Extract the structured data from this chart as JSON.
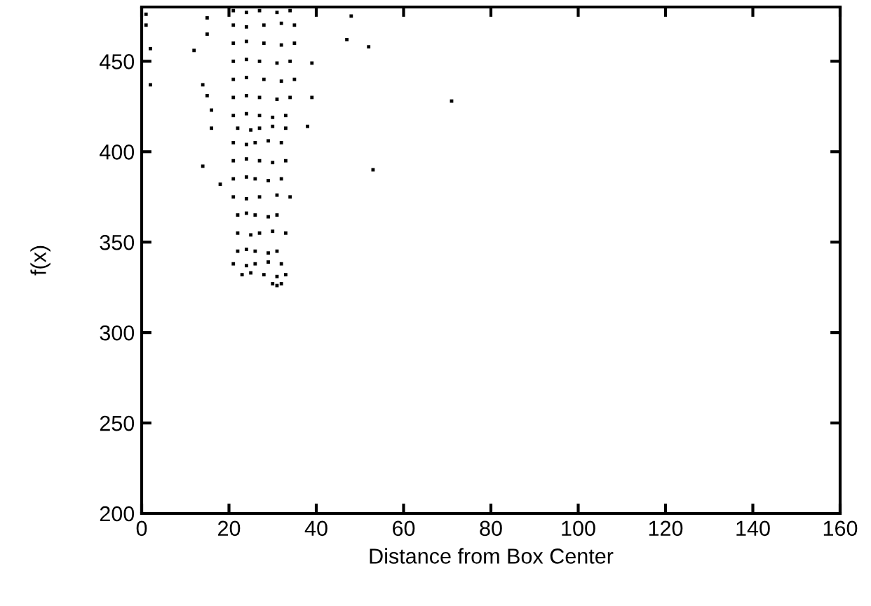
{
  "chart_data": {
    "type": "scatter",
    "xlabel": "Distance from Box Center",
    "ylabel": "f(x)",
    "xlim": [
      0,
      160
    ],
    "ylim": [
      200,
      480
    ],
    "xticks": [
      0,
      20,
      40,
      60,
      80,
      100,
      120,
      140,
      160
    ],
    "yticks": [
      200,
      250,
      300,
      350,
      400,
      450
    ],
    "marker": "square",
    "grid": false,
    "legend": false,
    "series": [
      {
        "color": "#000000",
        "x": [
          21,
          24,
          27,
          31,
          34,
          21,
          24,
          28,
          32,
          35,
          21,
          24,
          28,
          32,
          35,
          21,
          24,
          27,
          31,
          34,
          21,
          24,
          28,
          32,
          35,
          21,
          24,
          27,
          31,
          34,
          21,
          24,
          27,
          30,
          33,
          22,
          25,
          27,
          30,
          33,
          21,
          24,
          26,
          29,
          32,
          21,
          24,
          27,
          30,
          33,
          21,
          24,
          26,
          29,
          32,
          21,
          24,
          27,
          31,
          34,
          22,
          24,
          26,
          29,
          31,
          22,
          25,
          27,
          30,
          33,
          22,
          24,
          26,
          29,
          31,
          21,
          24,
          26,
          29,
          32,
          23,
          25,
          28,
          31,
          33,
          30,
          31,
          32,
          1,
          1,
          2,
          2,
          15,
          15,
          12,
          14,
          15,
          16,
          16,
          14,
          18,
          48,
          47,
          52,
          39,
          39,
          38,
          53,
          71
        ],
        "values": [
          478,
          477,
          478,
          477,
          478,
          470,
          469,
          470,
          471,
          470,
          460,
          461,
          460,
          459,
          460,
          450,
          451,
          450,
          449,
          450,
          440,
          441,
          440,
          439,
          440,
          430,
          431,
          430,
          429,
          430,
          420,
          421,
          420,
          419,
          420,
          413,
          412,
          413,
          414,
          413,
          405,
          404,
          405,
          406,
          405,
          395,
          396,
          395,
          394,
          395,
          385,
          386,
          385,
          384,
          385,
          375,
          374,
          375,
          376,
          375,
          365,
          366,
          365,
          364,
          365,
          355,
          354,
          355,
          356,
          355,
          345,
          346,
          345,
          344,
          345,
          338,
          337,
          338,
          339,
          338,
          332,
          333,
          332,
          331,
          332,
          327,
          326,
          327,
          476,
          470,
          457,
          437,
          474,
          465,
          456,
          437,
          431,
          423,
          413,
          392,
          382,
          475,
          462,
          458,
          449,
          430,
          414,
          390,
          428
        ]
      }
    ]
  }
}
